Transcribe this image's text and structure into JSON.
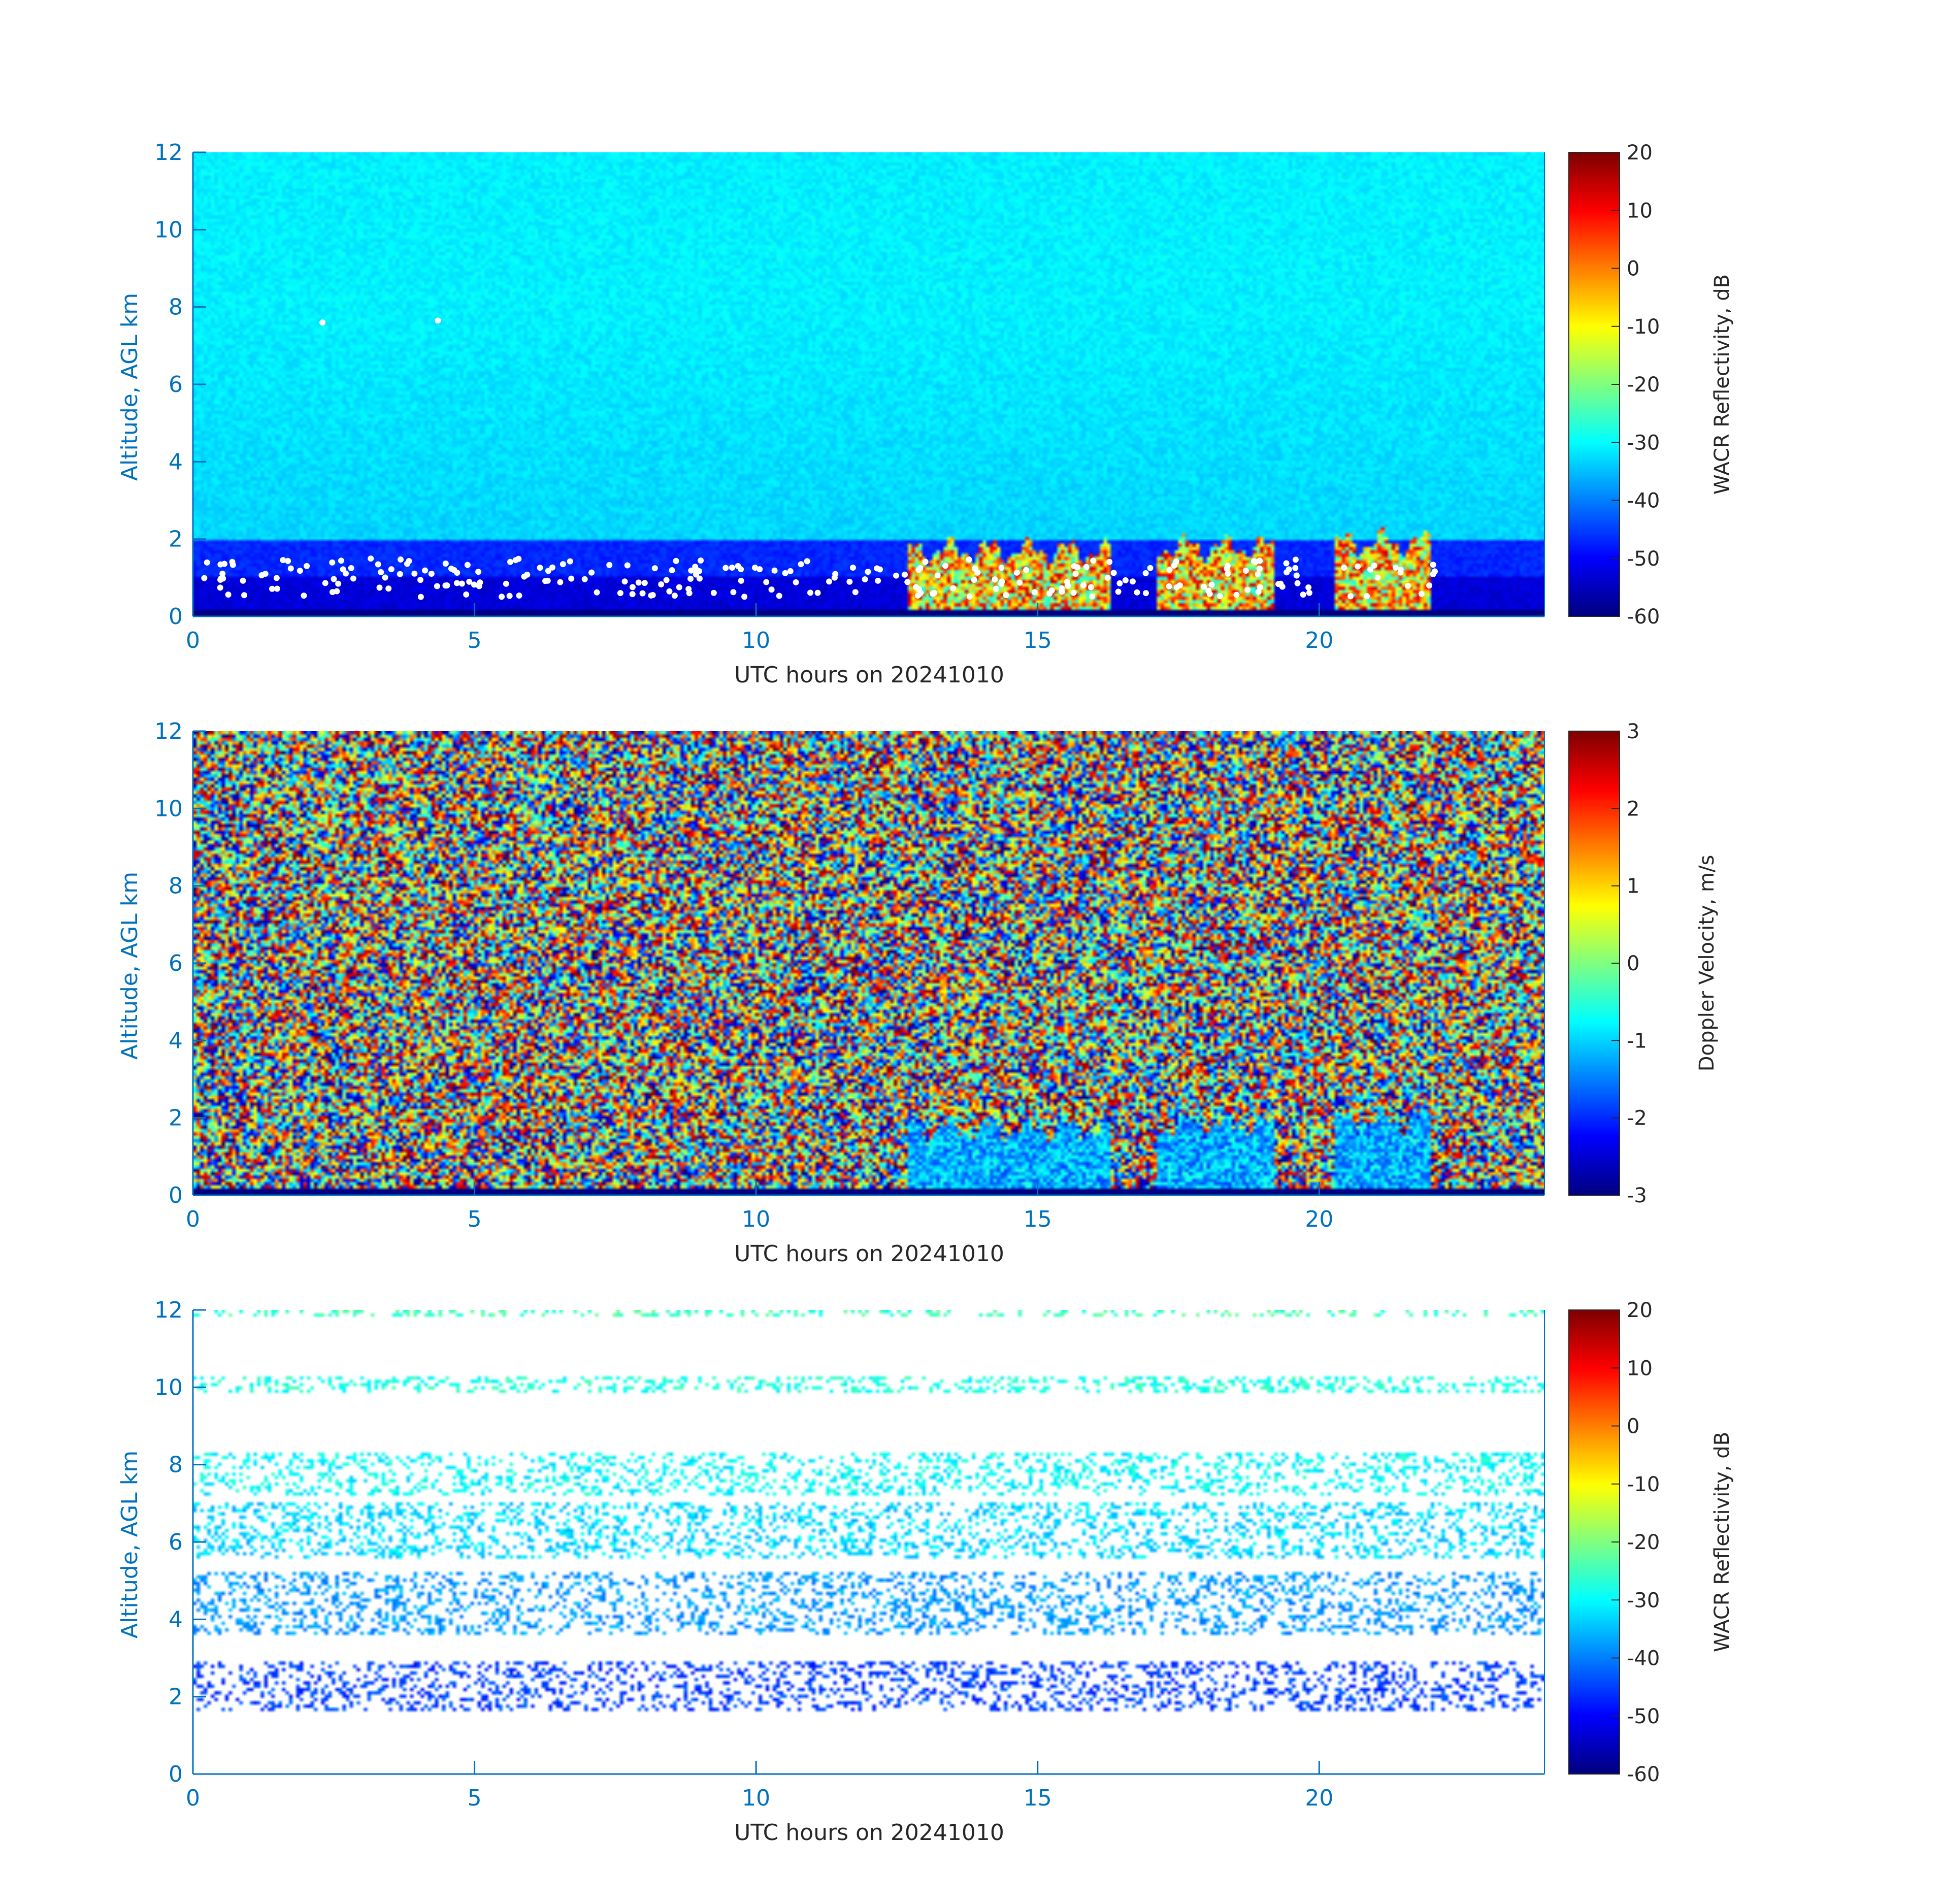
{
  "colors": {
    "axis": "#0072BD",
    "text": "#262626",
    "background": "#ffffff"
  },
  "chart_data": [
    {
      "type": "heatmap",
      "title": "",
      "xlabel": "UTC hours on 20241010",
      "ylabel": "Altitude, AGL km",
      "xlim": [
        0,
        24
      ],
      "ylim": [
        0,
        12
      ],
      "xticks": [
        "0",
        "5",
        "10",
        "15",
        "20"
      ],
      "yticks": [
        "0",
        "2",
        "4",
        "6",
        "8",
        "10",
        "12"
      ],
      "colormap": "jet",
      "colorbar": {
        "label": "WACR Reflectivity, dB",
        "range": [
          -60,
          20
        ],
        "ticks": [
          "20",
          "10",
          "0",
          "-10",
          "-20",
          "-30",
          "-40",
          "-50",
          "-60"
        ]
      },
      "background_field": "reflectivity decreasing with altitude, about -30 dB aloft, about -50 dB below 2 km, about -60 dB near the surface",
      "cloud_features": [
        {
          "start_hour": 12.7,
          "end_hour": 16.3,
          "top_km": 1.7
        },
        {
          "start_hour": 17.1,
          "end_hour": 19.2,
          "top_km": 1.8
        },
        {
          "start_hour": 20.3,
          "end_hour": 22.0,
          "top_km": 1.9
        }
      ],
      "white_markers": "scattered near 0.5 to 1.5 km from 0 to 22 hours, dense over the cloud features, two isolated points near 7.6 km"
    },
    {
      "type": "heatmap",
      "title": "",
      "xlabel": "UTC hours on 20241010",
      "ylabel": "Altitude, AGL km",
      "xlim": [
        0,
        24
      ],
      "ylim": [
        0,
        12
      ],
      "xticks": [
        "0",
        "5",
        "10",
        "15",
        "20"
      ],
      "yticks": [
        "0",
        "2",
        "4",
        "6",
        "8",
        "10",
        "12"
      ],
      "colormap": "jet",
      "colorbar": {
        "label": "Doppler Velocity, m/s",
        "range": [
          -3,
          3
        ],
        "ticks": [
          "3",
          "2",
          "1",
          "0",
          "-1",
          "-2",
          "-3"
        ]
      },
      "background_field": "random noise spanning the full velocity range",
      "cloud_features": [
        {
          "start_hour": 12.7,
          "end_hour": 16.3,
          "top_km": 1.7,
          "velocity_ms": -1.2
        },
        {
          "start_hour": 17.1,
          "end_hour": 19.2,
          "top_km": 1.8,
          "velocity_ms": -1.2
        },
        {
          "start_hour": 20.3,
          "end_hour": 22.0,
          "top_km": 1.9,
          "velocity_ms": -1.2
        }
      ]
    },
    {
      "type": "heatmap",
      "title": "",
      "xlabel": "UTC hours on 20241010",
      "ylabel": "Altitude, AGL km",
      "xlim": [
        0,
        24
      ],
      "ylim": [
        0,
        12
      ],
      "xticks": [
        "0",
        "5",
        "10",
        "15",
        "20"
      ],
      "yticks": [
        "0",
        "2",
        "4",
        "6",
        "8",
        "10",
        "12"
      ],
      "colormap": "jet",
      "colorbar": {
        "label": "WACR Reflectivity, dB",
        "range": [
          -60,
          20
        ],
        "ticks": [
          "20",
          "10",
          "0",
          "-10",
          "-20",
          "-30",
          "-40",
          "-50",
          "-60"
        ]
      },
      "sparse_bands": [
        {
          "from_km": 1.6,
          "to_km": 2.9,
          "value_db": -45
        },
        {
          "from_km": 3.6,
          "to_km": 5.2,
          "value_db": -38
        },
        {
          "from_km": 5.6,
          "to_km": 7.0,
          "value_db": -33
        },
        {
          "from_km": 7.2,
          "to_km": 8.3,
          "value_db": -30
        },
        {
          "from_km": 9.9,
          "to_km": 10.3,
          "value_db": -28
        },
        {
          "from_km": 11.8,
          "to_km": 12.0,
          "value_db": -25
        }
      ]
    }
  ]
}
